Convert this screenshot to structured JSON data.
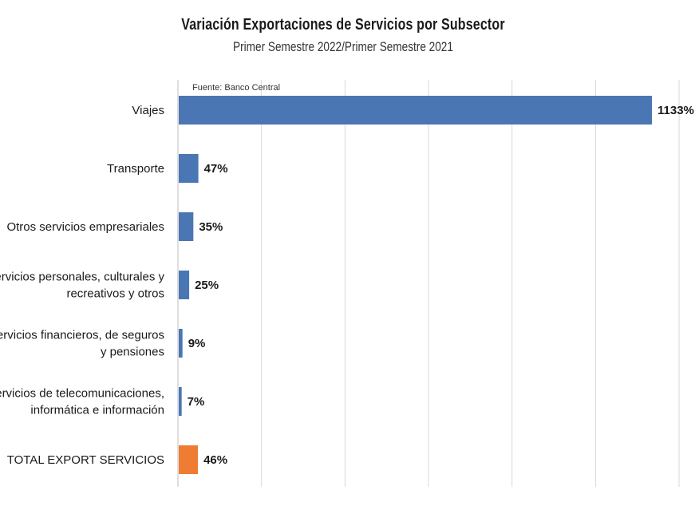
{
  "chart_data": {
    "type": "bar",
    "orientation": "horizontal",
    "title": "Variación Exportaciones de Servicios por Subsector",
    "subtitle": "Primer Semestre 2022/Primer Semestre 2021",
    "source": "Fuente: Banco Central",
    "categories": [
      [
        "Viajes"
      ],
      [
        "Transporte"
      ],
      [
        "Otros servicios empresariales"
      ],
      [
        "Servicios personales, culturales y",
        "recreativos y otros"
      ],
      [
        "Servicios financieros, de seguros",
        "y pensiones"
      ],
      [
        "Servicios de telecomunicaciones,",
        "informática e información"
      ],
      [
        "TOTAL EXPORT SERVICIOS"
      ]
    ],
    "values": [
      1133,
      47,
      35,
      25,
      9,
      7,
      46
    ],
    "value_labels": [
      "1133%",
      "47%",
      "35%",
      "25%",
      "9%",
      "7%",
      "46%"
    ],
    "xlim": [
      0,
      1200
    ],
    "grid": true,
    "colors": {
      "bar": "#4a76b4",
      "highlight": "#ee7d33",
      "gridline": "#d9d9d9",
      "axis": "#bfbfbf"
    },
    "highlight_index": 6
  }
}
